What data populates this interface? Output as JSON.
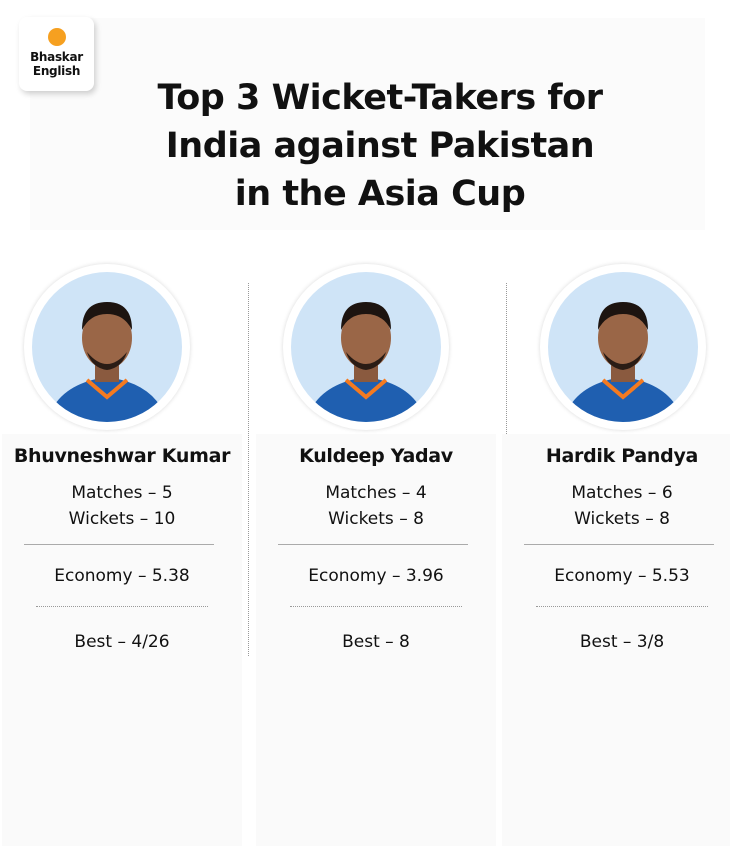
{
  "brand": {
    "logo_line1": "Bhaskar",
    "logo_line2": "English",
    "logo_dot_color": "#f6a020"
  },
  "title": {
    "line1": "Top 3 Wicket-Takers for",
    "line2": "India against Pakistan",
    "line3": "in the Asia Cup"
  },
  "photo_background_color": "#cfe4f7",
  "players": [
    {
      "name": "Bhuvneshwar Kumar",
      "matches": "Matches – 5",
      "wickets": "Wickets – 10",
      "economy": "Economy – 5.38",
      "best": "Best – 4/26"
    },
    {
      "name": "Kuldeep Yadav",
      "matches": "Matches – 4",
      "wickets": "Wickets – 8",
      "economy": "Economy – 3.96",
      "best": "Best – 8"
    },
    {
      "name": "Hardik Pandya",
      "matches": "Matches – 6",
      "wickets": "Wickets – 8",
      "economy": "Economy – 5.53",
      "best": "Best – 3/8"
    }
  ]
}
